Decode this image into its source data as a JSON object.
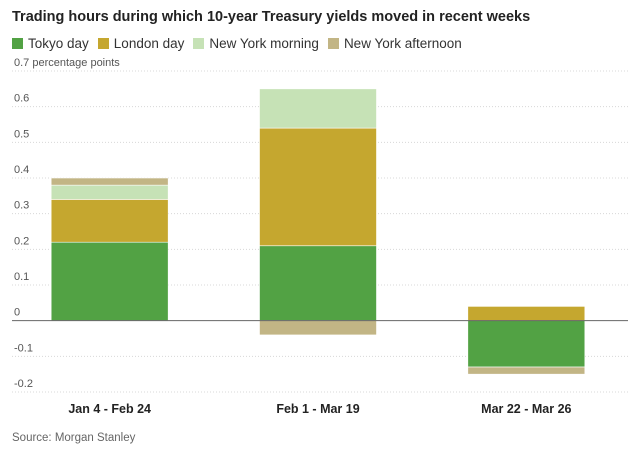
{
  "chart_data": {
    "type": "bar",
    "stacked": true,
    "title": "Trading hours during which 10-year Treasury yields moved in recent weeks",
    "ylabel": "percentage points",
    "top_tick_label": "0.7 percentage points",
    "ylim": [
      -0.2,
      0.7
    ],
    "yticks": [
      -0.2,
      -0.1,
      0,
      0.1,
      0.2,
      0.3,
      0.4,
      0.5,
      0.6,
      0.7
    ],
    "ytick_labels": [
      "-0.2",
      "-0.1",
      "0",
      "0.1",
      "0.2",
      "0.3",
      "0.4",
      "0.5",
      "0.6",
      "0.7"
    ],
    "categories": [
      "Jan 4 - Feb 24",
      "Feb 1 - Mar 19",
      "Mar 22 - Mar 26"
    ],
    "series": [
      {
        "name": "Tokyo day",
        "color": "#52a244",
        "values": [
          0.22,
          0.21,
          -0.13
        ]
      },
      {
        "name": "London day",
        "color": "#c5a72f",
        "values": [
          0.12,
          0.33,
          0.04
        ]
      },
      {
        "name": "New York morning",
        "color": "#c6e2b6",
        "values": [
          0.04,
          0.11,
          0.0
        ]
      },
      {
        "name": "New York afternoon",
        "color": "#c2b585",
        "values": [
          0.02,
          -0.04,
          -0.02
        ]
      }
    ],
    "source": "Source: Morgan Stanley"
  }
}
